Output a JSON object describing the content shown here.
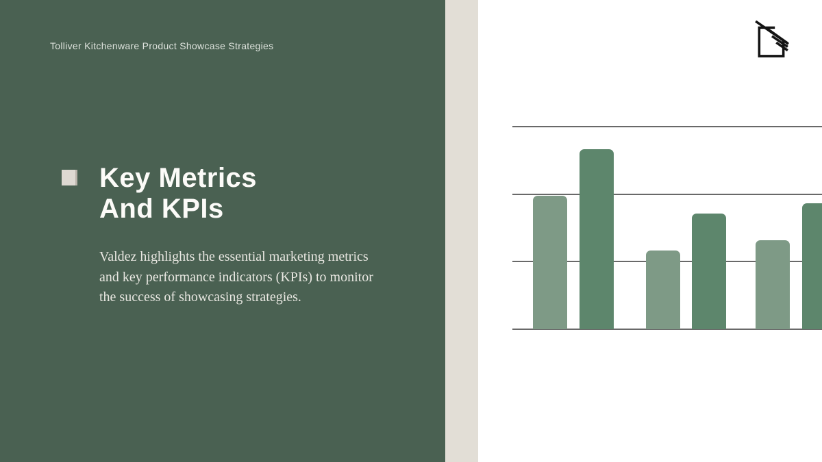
{
  "slide": {
    "kicker": "Tolliver Kitchenware Product Showcase Strategies",
    "title_line1": "Key Metrics",
    "title_line2": "And KPIs",
    "body_lines": [
      "Valdez highlights the essential marketing metrics",
      "and key performance indicators (KPIs) to monitor",
      "the success of showcasing strategies."
    ]
  },
  "colors": {
    "panel_green": "#4a6152",
    "beige": "#e2ded6",
    "bar_light": "#7e9a86",
    "bar_dark": "#5d866c",
    "gridline": "#696969",
    "title_text": "#fcfbf8",
    "body_text": "#e8e7e1",
    "kicker_text": "#dde2dc",
    "bullet": "#ded9d2",
    "logo": "#141414"
  },
  "chart_data": {
    "type": "bar",
    "categories": [
      "bar-1",
      "bar-2",
      "bar-3",
      "bar-4",
      "bar-5",
      "bar-6"
    ],
    "values": [
      66,
      89,
      39,
      57,
      44,
      62
    ],
    "bar_shades": [
      "light",
      "dark",
      "light",
      "dark",
      "light",
      "dark"
    ],
    "title": "",
    "xlabel": "",
    "ylabel": "",
    "ylim": [
      0,
      100
    ],
    "gridlines_y": [
      0,
      33.3,
      66.7,
      100
    ],
    "legend": "none",
    "layout_note": "decorative unlabeled bar chart in light/dark green pairs; last bar cropped by right slide edge"
  }
}
